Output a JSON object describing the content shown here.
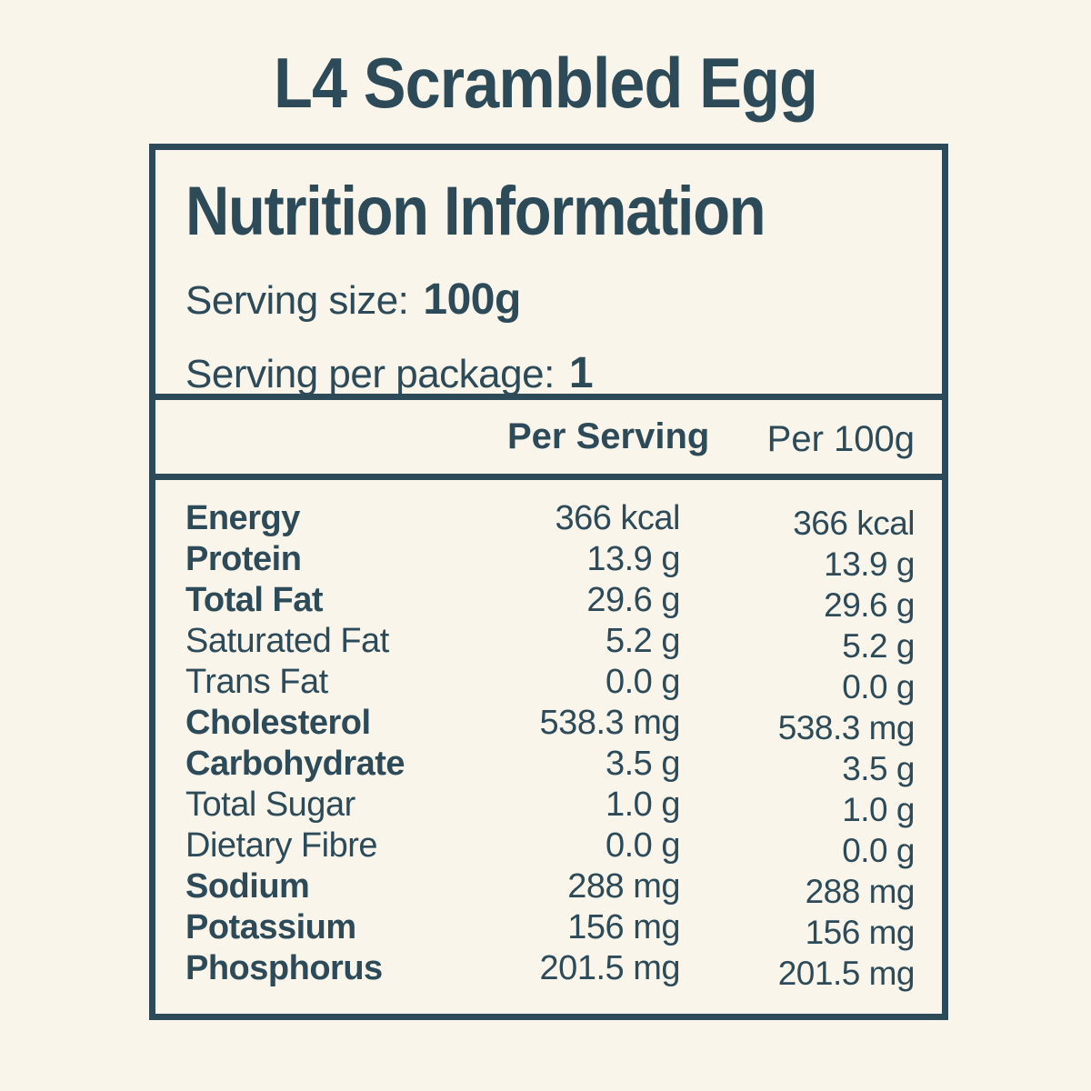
{
  "page": {
    "title": "L4 Scrambled Egg"
  },
  "panel": {
    "heading": "Nutrition Information",
    "serving_size_label": "Serving size:",
    "serving_size_value": "100g",
    "serving_per_package_label": "Serving per package:",
    "serving_per_package_value": "1",
    "columns": {
      "per_serving": "Per Serving",
      "per_100g": "Per 100g"
    }
  },
  "nutrients": [
    {
      "label": "Energy",
      "bold": true,
      "per_serving": "366 kcal",
      "per_100g": "366 kcal"
    },
    {
      "label": "Protein",
      "bold": true,
      "per_serving": "13.9 g",
      "per_100g": "13.9 g"
    },
    {
      "label": "Total Fat",
      "bold": true,
      "per_serving": "29.6 g",
      "per_100g": "29.6 g"
    },
    {
      "label": "Saturated Fat",
      "bold": false,
      "per_serving": "5.2 g",
      "per_100g": "5.2 g"
    },
    {
      "label": "Trans Fat",
      "bold": false,
      "per_serving": "0.0 g",
      "per_100g": "0.0 g"
    },
    {
      "label": "Cholesterol",
      "bold": true,
      "per_serving": "538.3 mg",
      "per_100g": "538.3 mg"
    },
    {
      "label": "Carbohydrate",
      "bold": true,
      "per_serving": "3.5 g",
      "per_100g": "3.5 g"
    },
    {
      "label": "Total Sugar",
      "bold": false,
      "per_serving": "1.0 g",
      "per_100g": "1.0 g"
    },
    {
      "label": "Dietary Fibre",
      "bold": false,
      "per_serving": "0.0 g",
      "per_100g": "0.0 g"
    },
    {
      "label": "Sodium",
      "bold": true,
      "per_serving": "288 mg",
      "per_100g": "288 mg"
    },
    {
      "label": "Potassium",
      "bold": true,
      "per_serving": "156 mg",
      "per_100g": "156 mg"
    },
    {
      "label": "Phosphorus",
      "bold": true,
      "per_serving": "201.5 mg",
      "per_100g": "201.5 mg"
    }
  ],
  "colors": {
    "background": "#f9f5eb",
    "ink": "#2d4a58"
  }
}
